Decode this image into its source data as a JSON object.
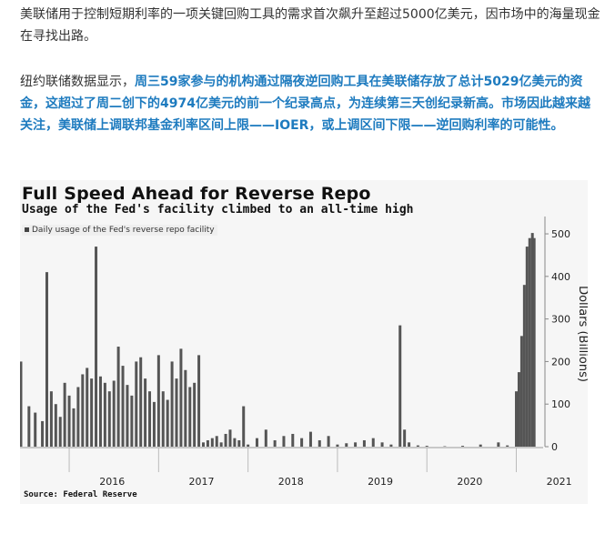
{
  "article": {
    "para1": "美联储用于控制短期利率的一项关键回购工具的需求首次飙升至超过5000亿美元，因市场中的海量现金在寻找出路。",
    "para2_lead": "纽约联储数据显示，",
    "para2_highlight": "周三59家参与的机构通过隔夜逆回购工具在美联储存放了总计5029亿美元的资金，这超过了周二创下的4974亿美元的前一个纪录高点，为连续第三天创纪录新高。市场因此越来越关注，美联储上调联邦基金利率区间上限——IOER，或上调区间下限——逆回购利率的可能性。"
  },
  "chart_data": {
    "type": "bar",
    "title": "Full Speed Ahead for Reverse Repo",
    "subtitle": "Usage of the Fed's facility climbed to an all-time high",
    "legend": "Daily usage of the Fed's reverse repo facility",
    "source": "Source: Federal Reserve",
    "ylabel": "Dollars (Billions)",
    "y_axis_side": "right",
    "ylim": [
      0,
      530
    ],
    "yticks": [
      0,
      100,
      200,
      300,
      400,
      500
    ],
    "x_tick_labels": [
      "2016",
      "2017",
      "2018",
      "2019",
      "2020",
      "2021"
    ],
    "x_tick_positions": [
      2016.0,
      2017.0,
      2018.0,
      2019.0,
      2020.0,
      2021.0
    ],
    "xlim": [
      2015.45,
      2021.3
    ],
    "bar_color": "#555555",
    "series": [
      {
        "x": [
          2015.46,
          2015.55,
          2015.62,
          2015.7,
          2015.75,
          2015.8,
          2015.85,
          2015.9,
          2015.95,
          2016.0,
          2016.05,
          2016.1,
          2016.15,
          2016.2,
          2016.25,
          2016.3,
          2016.35,
          2016.4,
          2016.45,
          2016.5,
          2016.55,
          2016.6,
          2016.65,
          2016.7,
          2016.75,
          2016.8,
          2016.85,
          2016.9,
          2016.95,
          2017.0,
          2017.05,
          2017.1,
          2017.15,
          2017.2,
          2017.25,
          2017.3,
          2017.35,
          2017.4,
          2017.45,
          2017.5,
          2017.55,
          2017.6,
          2017.65,
          2017.7,
          2017.75,
          2017.8,
          2017.85,
          2017.9,
          2017.95,
          2018.0,
          2018.1,
          2018.2,
          2018.3,
          2018.4,
          2018.5,
          2018.6,
          2018.7,
          2018.8,
          2018.9,
          2019.0,
          2019.1,
          2019.2,
          2019.3,
          2019.4,
          2019.5,
          2019.6,
          2019.7,
          2019.75,
          2019.8,
          2019.9,
          2020.0,
          2020.2,
          2020.4,
          2020.6,
          2020.8,
          2020.9,
          2021.0,
          2021.03,
          2021.06,
          2021.09,
          2021.12,
          2021.15,
          2021.18,
          2021.2
        ],
        "values": [
          200,
          95,
          80,
          60,
          410,
          130,
          100,
          70,
          150,
          120,
          90,
          140,
          170,
          185,
          160,
          470,
          165,
          150,
          130,
          155,
          235,
          190,
          145,
          120,
          200,
          210,
          160,
          130,
          105,
          215,
          130,
          110,
          200,
          160,
          230,
          180,
          140,
          150,
          215,
          10,
          15,
          20,
          25,
          10,
          30,
          40,
          20,
          15,
          95,
          5,
          20,
          40,
          15,
          25,
          30,
          20,
          35,
          15,
          25,
          5,
          8,
          10,
          15,
          20,
          10,
          5,
          285,
          40,
          10,
          3,
          2,
          1,
          2,
          5,
          10,
          3,
          130,
          175,
          260,
          380,
          470,
          490,
          502,
          490
        ]
      }
    ]
  }
}
